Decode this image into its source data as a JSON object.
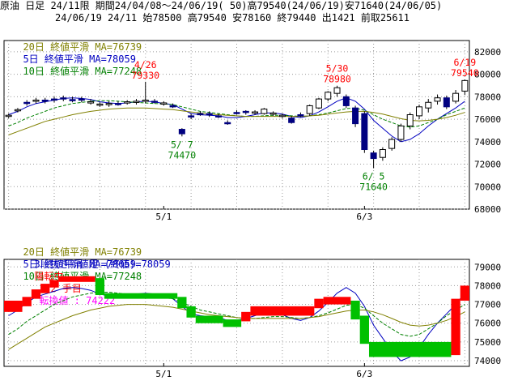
{
  "header": {
    "line1": "原油 日足 24/11限 期間24/04/08～24/06/19( 50)高79540(24/06/19)安71640(24/06/05)",
    "line2": "24/06/19 24/11 始78500 高79540 安78160 終79440 出1421 前取25611"
  },
  "legend_top": {
    "ma20": "20日 終値平滑 MA=76739",
    "ma5": "5日 終値平滑 MA=78059",
    "ma10": "10日 終値平滑 MA=77248"
  },
  "legend_bottom": {
    "ma20": "20日 終値平滑 MA=76739",
    "ma5": "5日 終値平滑 MA=78059",
    "ma10": "10日 終値平滑 MA=77248",
    "kagi": "3段抜き新値足 (終値)=78059",
    "status": "陽転中",
    "hand": "2 手目",
    "turn": "転換値 : 74222"
  },
  "colors": {
    "ma20": "#808000",
    "ma5": "#0000c0",
    "ma10": "#008000",
    "up_candle": "#ffffff",
    "down_candle": "#000080",
    "kagi_up": "#ff0000",
    "kagi_down": "#00c000",
    "annot_high": "#ff0000",
    "annot_low": "#008000",
    "status_text": "#ff0000",
    "turn_text": "#ff00ff"
  },
  "chart_data": [
    {
      "type": "candlestick",
      "ylim": [
        68000,
        83000
      ],
      "yticks": [
        68000,
        70000,
        72000,
        74000,
        76000,
        78000,
        80000,
        82000
      ],
      "ytick_labels": [
        "68000",
        "70000",
        "72000",
        "74000",
        "76000",
        "78000",
        "80000",
        "82000"
      ],
      "xtick_labels": [
        {
          "label": "5/1",
          "index": 17
        },
        {
          "label": "6/3",
          "index": 39
        }
      ],
      "candles": [
        {
          "o": 76300,
          "h": 76500,
          "l": 76100,
          "c": 76350
        },
        {
          "o": 76800,
          "h": 77000,
          "l": 76600,
          "c": 76850
        },
        {
          "o": 77500,
          "h": 77700,
          "l": 77200,
          "c": 77450
        },
        {
          "o": 77600,
          "h": 77900,
          "l": 77400,
          "c": 77700
        },
        {
          "o": 77700,
          "h": 77900,
          "l": 77400,
          "c": 77600
        },
        {
          "o": 77800,
          "h": 78000,
          "l": 77500,
          "c": 77750
        },
        {
          "o": 77900,
          "h": 78100,
          "l": 77600,
          "c": 77850
        },
        {
          "o": 77750,
          "h": 78000,
          "l": 77500,
          "c": 77700
        },
        {
          "o": 77800,
          "h": 78000,
          "l": 77500,
          "c": 77750
        },
        {
          "o": 77500,
          "h": 77800,
          "l": 77300,
          "c": 77550
        },
        {
          "o": 77300,
          "h": 77500,
          "l": 77100,
          "c": 77350
        },
        {
          "o": 77300,
          "h": 77600,
          "l": 77100,
          "c": 77400
        },
        {
          "o": 77400,
          "h": 77600,
          "l": 77200,
          "c": 77350
        },
        {
          "o": 77500,
          "h": 77700,
          "l": 77300,
          "c": 77550
        },
        {
          "o": 77500,
          "h": 77800,
          "l": 77300,
          "c": 77600
        },
        {
          "o": 77600,
          "h": 79330,
          "l": 77400,
          "c": 77700
        },
        {
          "o": 77600,
          "h": 77800,
          "l": 77400,
          "c": 77550
        },
        {
          "o": 77400,
          "h": 77600,
          "l": 77200,
          "c": 77450
        },
        {
          "o": 77200,
          "h": 77400,
          "l": 77000,
          "c": 77100
        },
        {
          "o": 75100,
          "h": 75200,
          "l": 74470,
          "c": 74700
        },
        {
          "o": 76300,
          "h": 76500,
          "l": 76000,
          "c": 76250
        },
        {
          "o": 76500,
          "h": 76700,
          "l": 76300,
          "c": 76450
        },
        {
          "o": 76500,
          "h": 76700,
          "l": 76200,
          "c": 76400
        },
        {
          "o": 76300,
          "h": 76500,
          "l": 76100,
          "c": 76250
        },
        {
          "o": 75700,
          "h": 75900,
          "l": 75500,
          "c": 75650
        },
        {
          "o": 76600,
          "h": 76800,
          "l": 76400,
          "c": 76550
        },
        {
          "o": 76700,
          "h": 76800,
          "l": 76400,
          "c": 76650
        },
        {
          "o": 76600,
          "h": 76800,
          "l": 76400,
          "c": 76650
        },
        {
          "o": 76500,
          "h": 77000,
          "l": 76400,
          "c": 76900
        },
        {
          "o": 76500,
          "h": 76700,
          "l": 76300,
          "c": 76550
        },
        {
          "o": 76300,
          "h": 76500,
          "l": 76100,
          "c": 76350
        },
        {
          "o": 76100,
          "h": 76300,
          "l": 75600,
          "c": 75700
        },
        {
          "o": 76400,
          "h": 76600,
          "l": 76200,
          "c": 76350
        },
        {
          "o": 76500,
          "h": 77300,
          "l": 76300,
          "c": 77200
        },
        {
          "o": 77000,
          "h": 77900,
          "l": 76900,
          "c": 77800
        },
        {
          "o": 77800,
          "h": 78500,
          "l": 77600,
          "c": 78400
        },
        {
          "o": 78300,
          "h": 78980,
          "l": 78000,
          "c": 78800
        },
        {
          "o": 78000,
          "h": 78200,
          "l": 77000,
          "c": 77200
        },
        {
          "o": 77000,
          "h": 77200,
          "l": 75300,
          "c": 75600
        },
        {
          "o": 76500,
          "h": 76700,
          "l": 73000,
          "c": 73300
        },
        {
          "o": 73000,
          "h": 73200,
          "l": 71640,
          "c": 72500
        },
        {
          "o": 72600,
          "h": 73500,
          "l": 72300,
          "c": 73300
        },
        {
          "o": 73400,
          "h": 74400,
          "l": 73200,
          "c": 74200
        },
        {
          "o": 74200,
          "h": 75600,
          "l": 74000,
          "c": 75400
        },
        {
          "o": 75400,
          "h": 76600,
          "l": 75100,
          "c": 76400
        },
        {
          "o": 76300,
          "h": 77300,
          "l": 76000,
          "c": 77100
        },
        {
          "o": 77000,
          "h": 77800,
          "l": 76600,
          "c": 77500
        },
        {
          "o": 77600,
          "h": 78200,
          "l": 77300,
          "c": 77900
        },
        {
          "o": 77900,
          "h": 78100,
          "l": 76900,
          "c": 77100
        },
        {
          "o": 77600,
          "h": 78600,
          "l": 77400,
          "c": 78300
        },
        {
          "o": 78500,
          "h": 79540,
          "l": 78160,
          "c": 79440
        }
      ],
      "series": [
        {
          "name": "5日 終値平滑",
          "values": [
            76400,
            76700,
            77100,
            77400,
            77550,
            77700,
            77850,
            77900,
            77850,
            77750,
            77550,
            77450,
            77400,
            77450,
            77550,
            77600,
            77550,
            77400,
            77300,
            76900,
            76500,
            76400,
            76350,
            76300,
            76150,
            76150,
            76250,
            76400,
            76550,
            76550,
            76450,
            76250,
            76150,
            76300,
            76650,
            77100,
            77600,
            77900,
            77600,
            76900,
            75900,
            75200,
            74500,
            74000,
            74200,
            74700,
            75400,
            76000,
            76500,
            77000,
            77600
          ]
        },
        {
          "name": "10日 終値平滑",
          "values": [
            75400,
            75700,
            76100,
            76400,
            76700,
            77000,
            77200,
            77400,
            77500,
            77600,
            77650,
            77650,
            77600,
            77550,
            77500,
            77450,
            77400,
            77350,
            77300,
            77100,
            76900,
            76700,
            76600,
            76500,
            76400,
            76300,
            76250,
            76250,
            76300,
            76350,
            76350,
            76300,
            76250,
            76300,
            76400,
            76550,
            76750,
            76950,
            77000,
            76800,
            76400,
            76000,
            75700,
            75400,
            75300,
            75400,
            75700,
            76000,
            76400,
            76700,
            77000
          ]
        },
        {
          "name": "20日 終値平滑",
          "values": [
            74600,
            74900,
            75200,
            75500,
            75800,
            76000,
            76200,
            76400,
            76550,
            76700,
            76800,
            76900,
            76950,
            77000,
            77000,
            77000,
            76950,
            76900,
            76850,
            76750,
            76650,
            76550,
            76450,
            76400,
            76350,
            76300,
            76250,
            76250,
            76250,
            76250,
            76250,
            76250,
            76250,
            76300,
            76350,
            76450,
            76550,
            76650,
            76700,
            76700,
            76600,
            76450,
            76250,
            76050,
            75900,
            75850,
            75900,
            76000,
            76150,
            76350,
            76600
          ]
        }
      ],
      "annotations": [
        {
          "label": "4/26",
          "value": "79330",
          "index": 15,
          "kind": "high"
        },
        {
          "label": "5/30",
          "value": "78980",
          "index": 36,
          "kind": "high"
        },
        {
          "label": "6/19",
          "value": "79540",
          "index": 50,
          "kind": "high"
        },
        {
          "label": "5/ 7",
          "value": "74470",
          "index": 19,
          "kind": "low"
        },
        {
          "label": "6/ 5",
          "value": "71640",
          "index": 40,
          "kind": "low"
        }
      ]
    },
    {
      "type": "new-price-bars",
      "ylim": [
        73700,
        79400
      ],
      "yticks": [
        74000,
        75000,
        76000,
        77000,
        78000,
        79000
      ],
      "ytick_labels": [
        "74000",
        "75000",
        "76000",
        "77000",
        "78000",
        "79000"
      ],
      "xtick_labels": [
        {
          "label": "5/1",
          "index": 17
        },
        {
          "label": "6/3",
          "index": 39
        }
      ],
      "bricks": [
        {
          "low": 76600,
          "high": 77200,
          "dir": "up",
          "start": 0,
          "end": 2
        },
        {
          "low": 76900,
          "high": 77400,
          "dir": "up",
          "start": 2,
          "end": 3
        },
        {
          "low": 77300,
          "high": 77800,
          "dir": "up",
          "start": 3,
          "end": 4
        },
        {
          "low": 77600,
          "high": 78100,
          "dir": "up",
          "start": 4,
          "end": 5
        },
        {
          "low": 77900,
          "high": 78300,
          "dir": "up",
          "start": 5,
          "end": 6
        },
        {
          "low": 78200,
          "high": 78500,
          "dir": "up",
          "start": 6,
          "end": 10
        },
        {
          "low": 77500,
          "high": 78400,
          "dir": "down",
          "start": 10,
          "end": 11
        },
        {
          "low": 77300,
          "high": 77600,
          "dir": "down",
          "start": 11,
          "end": 19
        },
        {
          "low": 76800,
          "high": 77400,
          "dir": "down",
          "start": 19,
          "end": 20
        },
        {
          "low": 76300,
          "high": 76900,
          "dir": "down",
          "start": 20,
          "end": 21
        },
        {
          "low": 76000,
          "high": 76400,
          "dir": "down",
          "start": 21,
          "end": 24
        },
        {
          "low": 75800,
          "high": 76200,
          "dir": "down",
          "start": 24,
          "end": 26
        },
        {
          "low": 76100,
          "high": 76600,
          "dir": "up",
          "start": 26,
          "end": 27
        },
        {
          "low": 76400,
          "high": 76900,
          "dir": "up",
          "start": 27,
          "end": 34
        },
        {
          "low": 76800,
          "high": 77300,
          "dir": "up",
          "start": 34,
          "end": 35
        },
        {
          "low": 77000,
          "high": 77400,
          "dir": "up",
          "start": 35,
          "end": 38
        },
        {
          "low": 76200,
          "high": 77200,
          "dir": "down",
          "start": 38,
          "end": 39
        },
        {
          "low": 74900,
          "high": 76400,
          "dir": "down",
          "start": 39,
          "end": 40
        },
        {
          "low": 74200,
          "high": 75000,
          "dir": "down",
          "start": 40,
          "end": 49
        },
        {
          "low": 74300,
          "high": 77300,
          "dir": "up",
          "start": 49,
          "end": 50
        },
        {
          "low": 77200,
          "high": 78000,
          "dir": "up",
          "start": 50,
          "end": 51
        }
      ]
    }
  ]
}
